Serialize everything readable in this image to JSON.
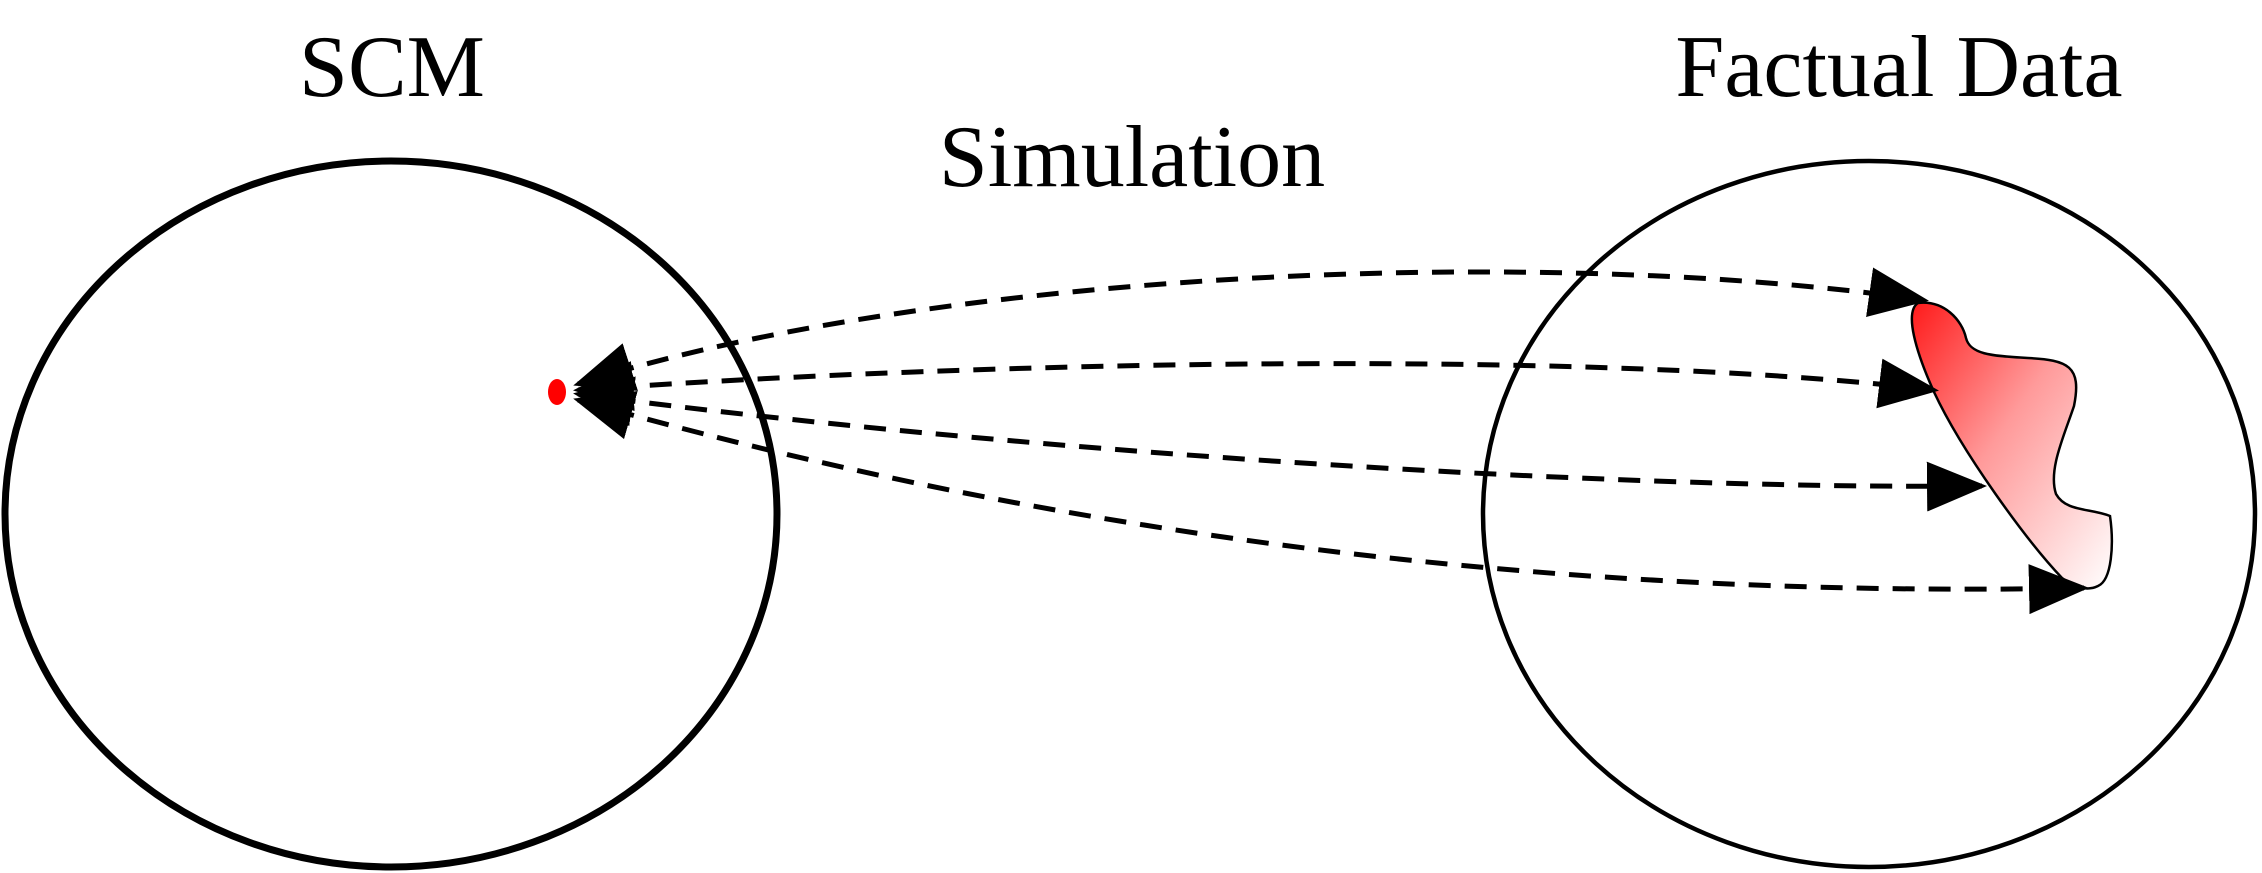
{
  "labels": {
    "scm": "SCM",
    "simulation": "Simulation",
    "factual_data": "Factual Data"
  },
  "colors": {
    "line": "#000000",
    "source_point": "#ff0000",
    "region_fill_start": "#ff1a1a",
    "region_fill_end": "#ffffff"
  },
  "arrow_count": 4
}
